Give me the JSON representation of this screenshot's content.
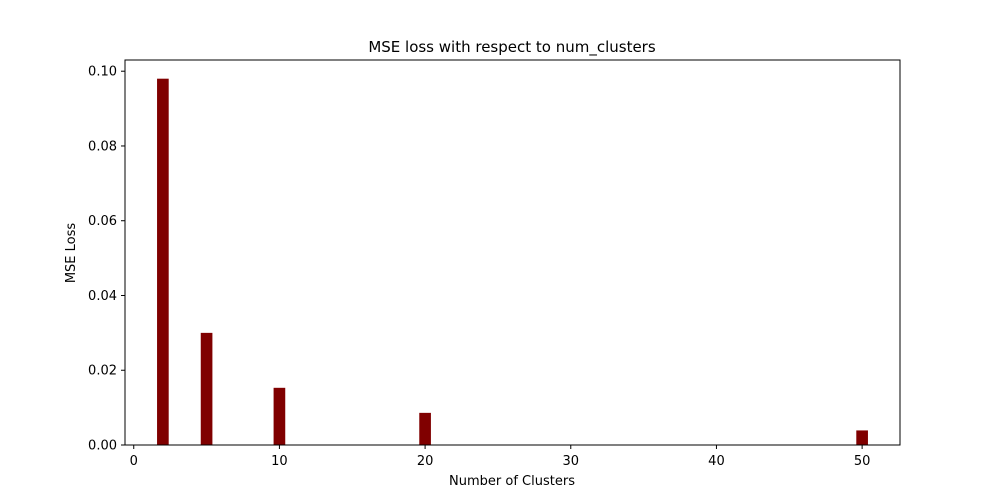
{
  "chart_data": {
    "type": "bar",
    "title": "MSE loss with respect to num_clusters",
    "xlabel": "Number of Clusters",
    "ylabel": "MSE Loss",
    "x": [
      2,
      5,
      10,
      20,
      50
    ],
    "values": [
      0.098,
      0.03,
      0.0153,
      0.0086,
      0.0039
    ],
    "bar_color": "#800000",
    "xlim": [
      -0.6,
      52.6
    ],
    "ylim": [
      0,
      0.103
    ],
    "xticks": [
      0,
      10,
      20,
      30,
      40,
      50
    ],
    "xtick_labels": [
      "0",
      "10",
      "20",
      "30",
      "40",
      "50"
    ],
    "yticks": [
      0,
      0.02,
      0.04,
      0.06,
      0.08,
      0.1
    ],
    "ytick_labels": [
      "0.00",
      "0.02",
      "0.04",
      "0.06",
      "0.08",
      "0.10"
    ],
    "grid": false,
    "legend": "none"
  }
}
